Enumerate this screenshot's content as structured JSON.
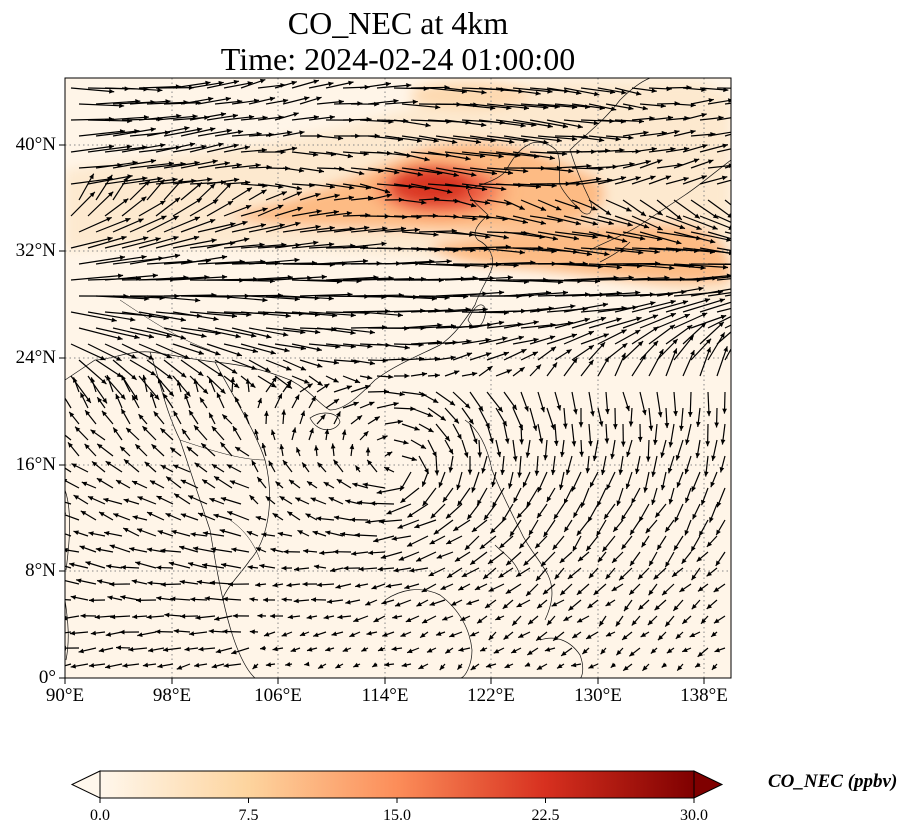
{
  "title": {
    "line1": "CO_NEC at 4km",
    "line2": "Time: 2024-02-24 01:00:00"
  },
  "map": {
    "lon_range": [
      90,
      140
    ],
    "lat_range": [
      0,
      45
    ],
    "gridlines": "dotted",
    "x_ticks": [
      "90°E",
      "98°E",
      "106°E",
      "114°E",
      "122°E",
      "130°E",
      "138°E"
    ],
    "y_ticks": [
      "0°",
      "8°N",
      "16°N",
      "24°N",
      "32°N",
      "40°N"
    ],
    "field": "CO_NEC",
    "overlay": "wind vectors",
    "high_value_region": "northern China / Yellow Sea / Korea, plume extending east across southern Japan"
  },
  "colorbar": {
    "label": "CO_NEC (ppbv)",
    "colormap": "OrRd",
    "ticks": [
      "0.0",
      "7.5",
      "15.0",
      "22.5",
      "30.0"
    ],
    "range": [
      0,
      30
    ],
    "extend": "both",
    "colors": [
      "#fff7ec",
      "#fdd49e",
      "#fc8d59",
      "#d7301f",
      "#7f0000"
    ]
  }
}
